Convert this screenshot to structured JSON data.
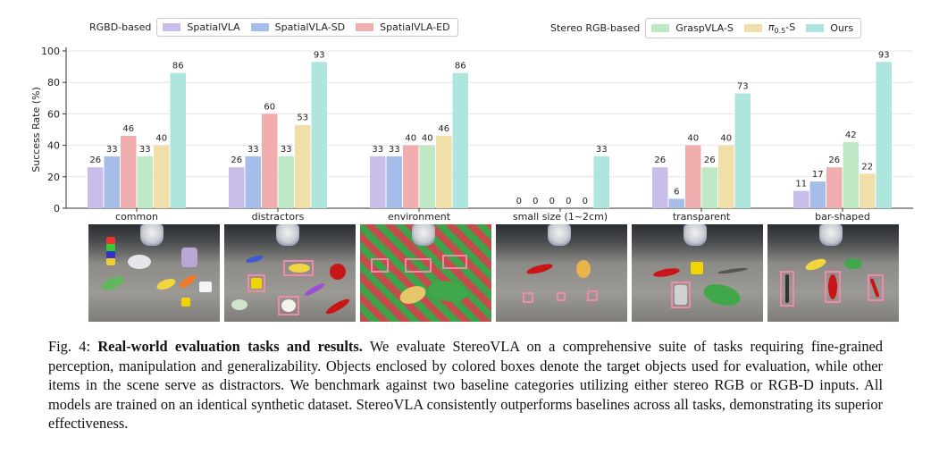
{
  "chart_data": {
    "type": "bar",
    "ylabel": "Success Rate (%)",
    "ylim": [
      0,
      100
    ],
    "yticks": [
      0,
      20,
      40,
      60,
      80,
      100
    ],
    "grid": true,
    "categories": [
      "common",
      "distractors",
      "environment",
      "small size (1~2cm)",
      "transparent",
      "bar-shaped"
    ],
    "series": [
      {
        "name": "SpatialVLA",
        "group": "RGBD-based",
        "color": "#c9bde9",
        "values": [
          26,
          26,
          33,
          0,
          26,
          11
        ]
      },
      {
        "name": "SpatialVLA-SD",
        "group": "RGBD-based",
        "color": "#a6bde9",
        "values": [
          33,
          33,
          33,
          0,
          6,
          17
        ]
      },
      {
        "name": "SpatialVLA-ED",
        "group": "RGBD-based",
        "color": "#f1aeae",
        "values": [
          46,
          60,
          40,
          0,
          40,
          26
        ]
      },
      {
        "name": "GraspVLA-S",
        "group": "Stereo RGB-based",
        "color": "#bfe8c5",
        "values": [
          33,
          33,
          40,
          0,
          26,
          42
        ]
      },
      {
        "name": "π0.5-S",
        "group": "Stereo RGB-based",
        "color": "#f1dfaa",
        "values": [
          40,
          53,
          46,
          0,
          40,
          22
        ]
      },
      {
        "name": "Ours",
        "group": "Stereo RGB-based",
        "color": "#aee6de",
        "values": [
          86,
          93,
          86,
          33,
          73,
          93
        ]
      }
    ],
    "legend": [
      {
        "title": "RGBD-based",
        "placement": "top-left",
        "items": [
          "SpatialVLA",
          "SpatialVLA-SD",
          "SpatialVLA-ED"
        ]
      },
      {
        "title": "Stereo RGB-based",
        "placement": "top-right",
        "items": [
          "GraspVLA-S",
          "π0.5-S",
          "Ours"
        ]
      }
    ]
  },
  "legend_labels": {
    "group1": "RGBD-based",
    "group2": "Stereo RGB-based",
    "pi_base": "π",
    "pi_sub": "0.5",
    "pi_suffix": "-S"
  },
  "photos": [
    {
      "name": "common"
    },
    {
      "name": "distractors"
    },
    {
      "name": "environment"
    },
    {
      "name": "small size (1~2cm)"
    },
    {
      "name": "transparent"
    },
    {
      "name": "bar-shaped"
    }
  ],
  "caption": {
    "label": "Fig. 4:",
    "title": "Real-world evaluation tasks and results.",
    "body": "We evaluate StereoVLA on a comprehensive suite of tasks requiring fine-grained perception, manipulation and generalizability. Objects enclosed by colored boxes denote the target objects used for evaluation, while other items in the scene serve as distractors. We benchmark against two baseline categories utilizing either stereo RGB or RGB-D inputs. All models are trained on an identical synthetic dataset. StereoVLA consistently outperforms baselines across all tasks, demonstrating its superior effectiveness."
  }
}
